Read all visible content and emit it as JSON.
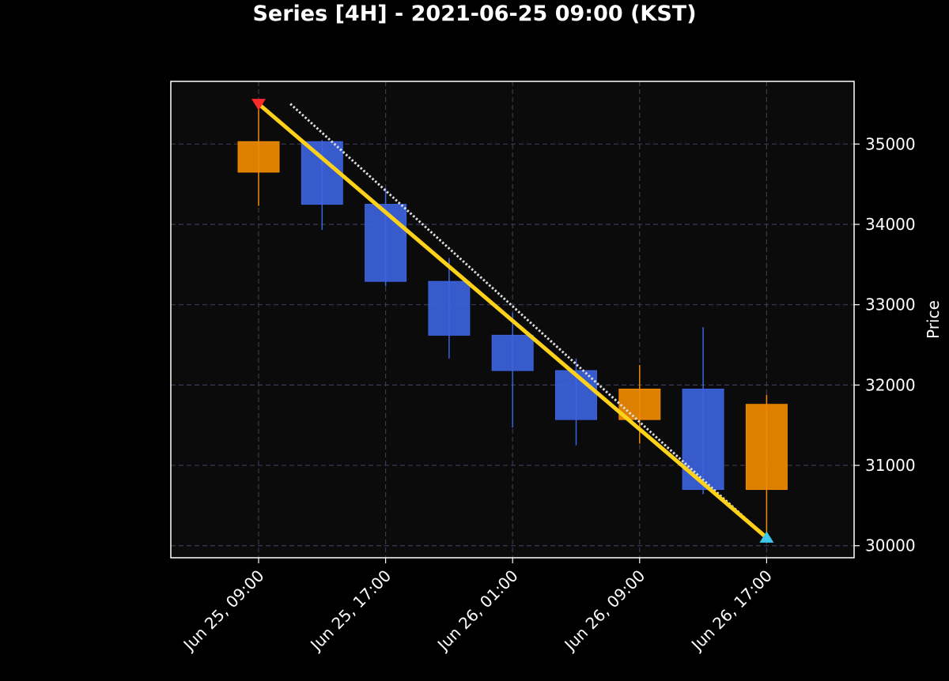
{
  "chart_data": {
    "type": "candlestick",
    "title": "Series [4H] - 2021-06-25 09:00 (KST)",
    "ylabel": "Price",
    "xlabel": "",
    "ylim": [
      29850,
      35780
    ],
    "y_ticks": [
      30000,
      31000,
      32000,
      33000,
      34000,
      35000
    ],
    "x_ticks": [
      {
        "label": "Jun 25, 09:00",
        "index": 0
      },
      {
        "label": "Jun 25, 17:00",
        "index": 2
      },
      {
        "label": "Jun 26, 01:00",
        "index": 4
      },
      {
        "label": "Jun 26, 09:00",
        "index": 6
      },
      {
        "label": "Jun 26, 17:00",
        "index": 8
      }
    ],
    "grid": true,
    "colors": {
      "up": "#f08a00",
      "down": "#3d63dd",
      "trend": "#ffd21a",
      "dotted": "#dddddd",
      "start_marker": "#ff2a2a",
      "end_marker": "#3ec8ee",
      "plot_bg": "#0b0b0b",
      "grid": "#3a3a55"
    },
    "candles": [
      {
        "time": "2021-06-25 09:00",
        "open": 34650,
        "high": 35500,
        "low": 34230,
        "close": 35030
      },
      {
        "time": "2021-06-25 13:00",
        "open": 35030,
        "high": 35050,
        "low": 33930,
        "close": 34250
      },
      {
        "time": "2021-06-25 17:00",
        "open": 34250,
        "high": 34450,
        "low": 33230,
        "close": 33290
      },
      {
        "time": "2021-06-25 21:00",
        "open": 33290,
        "high": 33580,
        "low": 32330,
        "close": 32620
      },
      {
        "time": "2021-06-26 01:00",
        "open": 32620,
        "high": 32900,
        "low": 31470,
        "close": 32180
      },
      {
        "time": "2021-06-26 05:00",
        "open": 32180,
        "high": 32330,
        "low": 31250,
        "close": 31570
      },
      {
        "time": "2021-06-26 09:00",
        "open": 31570,
        "high": 32250,
        "low": 31270,
        "close": 31950
      },
      {
        "time": "2021-06-26 13:00",
        "open": 31950,
        "high": 32720,
        "low": 30640,
        "close": 30700
      },
      {
        "time": "2021-06-26 17:00",
        "open": 30700,
        "high": 31880,
        "low": 30100,
        "close": 31760
      }
    ],
    "trend_line": {
      "from": {
        "index": 0,
        "value": 35500
      },
      "to": {
        "index": 8,
        "value": 30100
      }
    },
    "dotted_line": {
      "from": {
        "index": 0.5,
        "value": 35500
      },
      "to": {
        "index": 8,
        "value": 30100
      }
    },
    "markers": [
      {
        "type": "start",
        "shape": "triangle-down",
        "index": 0,
        "value": 35500
      },
      {
        "type": "end",
        "shape": "triangle-up",
        "index": 8,
        "value": 30100
      }
    ]
  }
}
